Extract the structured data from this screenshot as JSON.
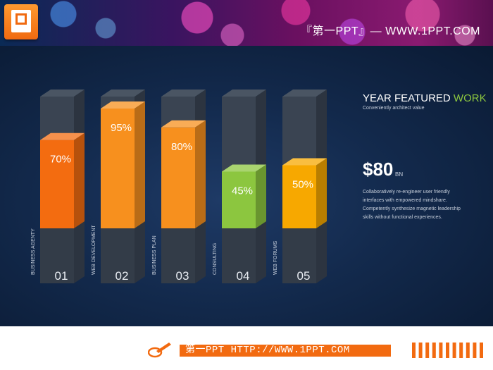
{
  "header": {
    "logo_icon": "powerpoint-logo-icon",
    "title": "『第一PPT』— WWW.1PPT.COM"
  },
  "chart_data": {
    "type": "bar",
    "categories": [
      "BUSINESS AGENTY",
      "WEB DEVELOPMENT",
      "BUSINESS PLAN",
      "CONSULTING",
      "WEB FORUMS"
    ],
    "numbers": [
      "01",
      "02",
      "03",
      "04",
      "05"
    ],
    "values": [
      70,
      95,
      80,
      45,
      50
    ],
    "value_labels": [
      "70%",
      "95%",
      "80%",
      "45%",
      "50%"
    ],
    "colors": [
      "#f36c10",
      "#f7901e",
      "#f7901e",
      "#8cc63f",
      "#f7a800"
    ],
    "ylim": [
      0,
      100
    ]
  },
  "side": {
    "title_main": "YEAR FEATURED ",
    "title_accent": "WORK",
    "subtitle": "Conveniently architect value",
    "price": "$80",
    "price_unit": "BN",
    "description": [
      "Collaboratively re-engineer user friendly",
      "interfaces with empowered mindshare.",
      "Competently synthesize magnetic leadership",
      "skills without functional experiences."
    ]
  },
  "footer": {
    "icon": "pencil-icon",
    "text": "第一PPT HTTP://WWW.1PPT.COM"
  },
  "colors": {
    "accent_green": "#8cc63f",
    "accent_orange": "#f26a10",
    "panel_bg": "#132a4d"
  }
}
